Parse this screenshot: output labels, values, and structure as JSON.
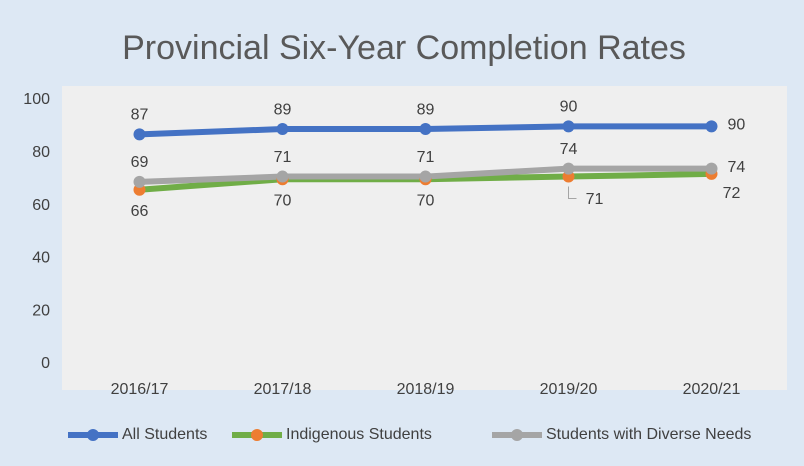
{
  "chart_data": {
    "type": "line",
    "title": "Provincial Six-Year Completion Rates",
    "categories": [
      "2016/17",
      "2017/18",
      "2018/19",
      "2019/20",
      "2020/21"
    ],
    "series": [
      {
        "name": "All Students",
        "color": "#4472c4",
        "marker_color": "#4472c4",
        "values": [
          87,
          89,
          89,
          90,
          90
        ]
      },
      {
        "name": "Indigenous Students",
        "color": "#70ad47",
        "marker_color": "#ed7d31",
        "values": [
          66,
          70,
          70,
          71,
          72
        ]
      },
      {
        "name": "Students with Diverse Needs",
        "color": "#a5a5a5",
        "marker_color": "#a5a5a5",
        "values": [
          69,
          71,
          71,
          74,
          74
        ]
      }
    ],
    "ylim": [
      0,
      100
    ],
    "yticks": [
      0,
      20,
      40,
      60,
      80,
      100
    ],
    "grid": false,
    "legend": "bottom"
  }
}
